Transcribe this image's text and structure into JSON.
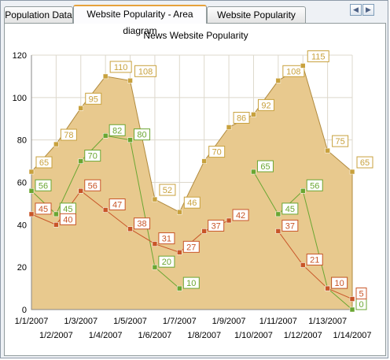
{
  "tabs": [
    {
      "label": "Population Data",
      "active": false
    },
    {
      "label": "Website Popularity - Area diagram",
      "active": true
    },
    {
      "label": "Website Popularity Data",
      "active": false
    }
  ],
  "nav": {
    "prev_icon": "chevron-left-icon",
    "next_icon": "chevron-right-icon"
  },
  "colors": {
    "area_fill": "#e8c98e",
    "area_line": "#b08a3e",
    "series1": "#c8a13d",
    "series2": "#6aa632",
    "series3": "#c85528",
    "grid": "#ddd8cc",
    "tab_accent": "#e6a23c"
  },
  "chart_data": {
    "type": "line",
    "title": "News Website Popularity",
    "grid": true,
    "legend": "none",
    "ylim": [
      0,
      120
    ],
    "yticks": [
      "0",
      "20",
      "40",
      "60",
      "80",
      "100",
      "120"
    ],
    "categories": [
      "1/1/2007",
      "1/2/2007",
      "1/3/2007",
      "1/4/2007",
      "1/5/2007",
      "1/6/2007",
      "1/7/2007",
      "1/8/2007",
      "1/9/2007",
      "1/10/2007",
      "1/11/2007",
      "1/12/2007",
      "1/13/2007",
      "1/14/2007"
    ],
    "series": [
      {
        "values": [
          65,
          78,
          95,
          110,
          108,
          52,
          46,
          70,
          86,
          92,
          108,
          115,
          75,
          65
        ],
        "area": true
      },
      {
        "values": [
          56,
          45,
          70,
          82,
          80,
          20,
          10,
          null,
          null,
          65,
          45,
          56,
          10,
          0
        ],
        "area": false
      },
      {
        "values": [
          45,
          40,
          56,
          47,
          38,
          31,
          27,
          37,
          42,
          null,
          37,
          21,
          10,
          5
        ],
        "area": false
      }
    ]
  }
}
